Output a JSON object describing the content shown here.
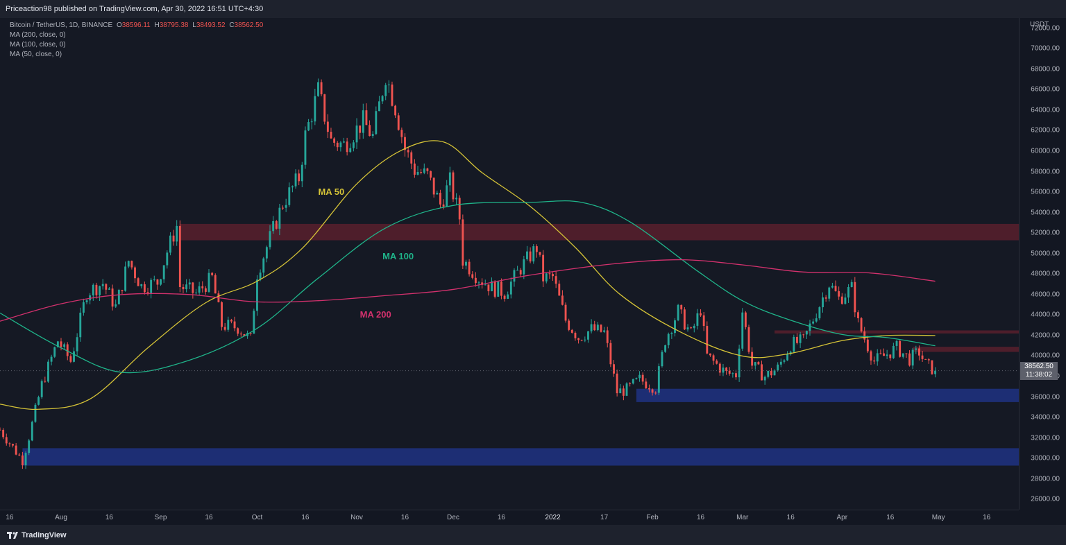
{
  "publisher_line": "Priceaction98 published on TradingView.com, Apr 30, 2022 16:51 UTC+4:30",
  "brand": "TradingView",
  "legend": {
    "symbol": "Bitcoin / TetherUS, 1D, BINANCE",
    "ohlc": [
      {
        "label": "O",
        "value": "38596.11"
      },
      {
        "label": "H",
        "value": "38795.38"
      },
      {
        "label": "L",
        "value": "38493.52"
      },
      {
        "label": "C",
        "value": "38562.50"
      }
    ],
    "indicators": [
      "MA (200, close, 0)",
      "MA (100, close, 0)",
      "MA (50, close, 0)"
    ]
  },
  "price_box": {
    "price": "38562.50",
    "countdown": "11:38:02"
  },
  "colors": {
    "up": "#26a69a",
    "down": "#ef5350",
    "ma50": "#d4c237",
    "ma100": "#1fb48a",
    "ma200": "#d2316d",
    "resistance_zone": "#5c1f2d",
    "support_zone": "#1e3382"
  },
  "chart_data": {
    "type": "candlestick",
    "symbol": "Bitcoin / TetherUS",
    "timeframe": "1D",
    "exchange": "BINANCE",
    "currency": "USDT",
    "x_range": [
      "2021-07-13",
      "2022-05-26"
    ],
    "ylim": [
      25000,
      73000
    ],
    "y_ticks": [
      26000,
      28000,
      30000,
      32000,
      34000,
      36000,
      38000,
      40000,
      42000,
      44000,
      46000,
      48000,
      50000,
      52000,
      54000,
      56000,
      58000,
      60000,
      62000,
      64000,
      66000,
      68000,
      70000,
      72000
    ],
    "x_tick_labels": [
      {
        "date": "2021-07-16",
        "label": "16"
      },
      {
        "date": "2021-08-01",
        "label": "Aug"
      },
      {
        "date": "2021-08-16",
        "label": "16"
      },
      {
        "date": "2021-09-01",
        "label": "Sep"
      },
      {
        "date": "2021-09-16",
        "label": "16"
      },
      {
        "date": "2021-10-01",
        "label": "Oct"
      },
      {
        "date": "2021-10-16",
        "label": "16"
      },
      {
        "date": "2021-11-01",
        "label": "Nov"
      },
      {
        "date": "2021-11-16",
        "label": "16"
      },
      {
        "date": "2021-12-01",
        "label": "Dec"
      },
      {
        "date": "2021-12-16",
        "label": "16"
      },
      {
        "date": "2022-01-01",
        "label": "2022"
      },
      {
        "date": "2022-01-17",
        "label": "17"
      },
      {
        "date": "2022-02-01",
        "label": "Feb"
      },
      {
        "date": "2022-02-16",
        "label": "16"
      },
      {
        "date": "2022-03-01",
        "label": "Mar"
      },
      {
        "date": "2022-03-16",
        "label": "16"
      },
      {
        "date": "2022-04-01",
        "label": "Apr"
      },
      {
        "date": "2022-04-16",
        "label": "16"
      },
      {
        "date": "2022-05-01",
        "label": "May"
      },
      {
        "date": "2022-05-16",
        "label": "16"
      }
    ],
    "close_path": [
      [
        "2021-07-13",
        32800
      ],
      [
        "2021-07-20",
        29800
      ],
      [
        "2021-07-22",
        32100
      ],
      [
        "2021-07-26",
        37200
      ],
      [
        "2021-07-31",
        41500
      ],
      [
        "2021-08-04",
        39500
      ],
      [
        "2021-08-09",
        46200
      ],
      [
        "2021-08-14",
        47100
      ],
      [
        "2021-08-18",
        44800
      ],
      [
        "2021-08-22",
        49300
      ],
      [
        "2021-08-26",
        46800
      ],
      [
        "2021-08-31",
        47200
      ],
      [
        "2021-09-03",
        50200
      ],
      [
        "2021-09-06",
        52700
      ],
      [
        "2021-09-07",
        46800
      ],
      [
        "2021-09-12",
        46100
      ],
      [
        "2021-09-17",
        47600
      ],
      [
        "2021-09-20",
        43000
      ],
      [
        "2021-09-25",
        42800
      ],
      [
        "2021-09-29",
        41600
      ],
      [
        "2021-10-01",
        48100
      ],
      [
        "2021-10-05",
        51500
      ],
      [
        "2021-10-09",
        54900
      ],
      [
        "2021-10-14",
        57400
      ],
      [
        "2021-10-16",
        61500
      ],
      [
        "2021-10-20",
        65900
      ],
      [
        "2021-10-24",
        61000
      ],
      [
        "2021-10-28",
        60600
      ],
      [
        "2021-11-03",
        62900
      ],
      [
        "2021-11-06",
        61400
      ],
      [
        "2021-11-10",
        67500
      ],
      [
        "2021-11-13",
        64300
      ],
      [
        "2021-11-16",
        60200
      ],
      [
        "2021-11-19",
        58200
      ],
      [
        "2021-11-23",
        57600
      ],
      [
        "2021-11-27",
        54800
      ],
      [
        "2021-11-30",
        57000
      ],
      [
        "2021-12-03",
        53500
      ],
      [
        "2021-12-04",
        49400
      ],
      [
        "2021-12-09",
        47600
      ],
      [
        "2021-12-13",
        46700
      ],
      [
        "2021-12-17",
        46200
      ],
      [
        "2021-12-22",
        48600
      ],
      [
        "2021-12-27",
        50600
      ],
      [
        "2021-12-29",
        47600
      ],
      [
        "2022-01-01",
        47700
      ],
      [
        "2022-01-05",
        43500
      ],
      [
        "2022-01-09",
        41800
      ],
      [
        "2022-01-13",
        42600
      ],
      [
        "2022-01-17",
        42300
      ],
      [
        "2022-01-21",
        36500
      ],
      [
        "2022-01-24",
        36700
      ],
      [
        "2022-01-28",
        37700
      ],
      [
        "2022-02-02",
        36900
      ],
      [
        "2022-02-05",
        41600
      ],
      [
        "2022-02-09",
        44400
      ],
      [
        "2022-02-13",
        42100
      ],
      [
        "2022-02-16",
        44600
      ],
      [
        "2022-02-18",
        40000
      ],
      [
        "2022-02-24",
        38300
      ],
      [
        "2022-02-27",
        38200
      ],
      [
        "2022-03-01",
        44400
      ],
      [
        "2022-03-04",
        39100
      ],
      [
        "2022-03-08",
        38000
      ],
      [
        "2022-03-12",
        38800
      ],
      [
        "2022-03-16",
        41100
      ],
      [
        "2022-03-20",
        41500
      ],
      [
        "2022-03-24",
        44300
      ],
      [
        "2022-03-28",
        47100
      ],
      [
        "2022-03-31",
        45600
      ],
      [
        "2022-04-04",
        46600
      ],
      [
        "2022-04-06",
        43200
      ],
      [
        "2022-04-11",
        39500
      ],
      [
        "2022-04-14",
        40000
      ],
      [
        "2022-04-18",
        40800
      ],
      [
        "2022-04-22",
        39700
      ],
      [
        "2022-04-25",
        40400
      ],
      [
        "2022-04-27",
        39200
      ],
      [
        "2022-04-30",
        38562.5
      ]
    ],
    "moving_averages": [
      {
        "name": "MA 50",
        "label": "MA 50",
        "period": 50,
        "points": [
          [
            "2021-07-13",
            35300
          ],
          [
            "2021-07-25",
            34800
          ],
          [
            "2021-08-10",
            35800
          ],
          [
            "2021-08-28",
            40800
          ],
          [
            "2021-09-15",
            45200
          ],
          [
            "2021-10-01",
            47300
          ],
          [
            "2021-10-15",
            50500
          ],
          [
            "2021-11-01",
            56800
          ],
          [
            "2021-11-15",
            60100
          ],
          [
            "2021-11-28",
            60900
          ],
          [
            "2021-12-10",
            57900
          ],
          [
            "2021-12-25",
            54600
          ],
          [
            "2022-01-08",
            50600
          ],
          [
            "2022-01-22",
            46000
          ],
          [
            "2022-02-10",
            42300
          ],
          [
            "2022-03-01",
            40000
          ],
          [
            "2022-03-15",
            40200
          ],
          [
            "2022-04-01",
            41500
          ],
          [
            "2022-04-15",
            42000
          ],
          [
            "2022-04-30",
            42000
          ]
        ]
      },
      {
        "name": "MA 100",
        "label": "MA 100",
        "period": 100,
        "points": [
          [
            "2021-07-13",
            44200
          ],
          [
            "2021-08-01",
            40800
          ],
          [
            "2021-08-20",
            38400
          ],
          [
            "2021-09-10",
            39600
          ],
          [
            "2021-10-01",
            42700
          ],
          [
            "2021-10-20",
            47600
          ],
          [
            "2021-11-10",
            52500
          ],
          [
            "2021-12-01",
            54700
          ],
          [
            "2021-12-25",
            55000
          ],
          [
            "2022-01-10",
            55000
          ],
          [
            "2022-01-25",
            53100
          ],
          [
            "2022-02-15",
            48300
          ],
          [
            "2022-03-01",
            45400
          ],
          [
            "2022-03-15",
            43600
          ],
          [
            "2022-04-01",
            42100
          ],
          [
            "2022-04-15",
            41800
          ],
          [
            "2022-04-30",
            41000
          ]
        ]
      },
      {
        "name": "MA 200",
        "label": "MA 200",
        "period": 200,
        "points": [
          [
            "2021-07-13",
            43400
          ],
          [
            "2021-08-01",
            45100
          ],
          [
            "2021-08-20",
            46000
          ],
          [
            "2021-09-10",
            46000
          ],
          [
            "2021-09-30",
            45300
          ],
          [
            "2021-10-20",
            45400
          ],
          [
            "2021-11-10",
            45900
          ],
          [
            "2021-12-01",
            46500
          ],
          [
            "2021-12-25",
            47900
          ],
          [
            "2022-01-20",
            49000
          ],
          [
            "2022-02-10",
            49400
          ],
          [
            "2022-03-01",
            48900
          ],
          [
            "2022-03-20",
            48200
          ],
          [
            "2022-04-10",
            48100
          ],
          [
            "2022-04-30",
            47300
          ]
        ]
      }
    ],
    "zones": [
      {
        "type": "resistance",
        "from": "2021-09-07",
        "to": "2022-05-26",
        "low": 51300,
        "high": 52900
      },
      {
        "type": "support",
        "from": "2022-01-27",
        "to": "2022-05-26",
        "low": 35500,
        "high": 36800
      },
      {
        "type": "support",
        "from": "2021-07-20",
        "to": "2022-05-26",
        "low": 29300,
        "high": 31000
      },
      {
        "type": "resistance",
        "from": "2022-03-11",
        "to": "2022-05-26",
        "low": 42200,
        "high": 42500
      },
      {
        "type": "resistance",
        "from": "2022-04-23",
        "to": "2022-05-26",
        "low": 40400,
        "high": 40900
      }
    ],
    "last_price": 38562.5
  }
}
